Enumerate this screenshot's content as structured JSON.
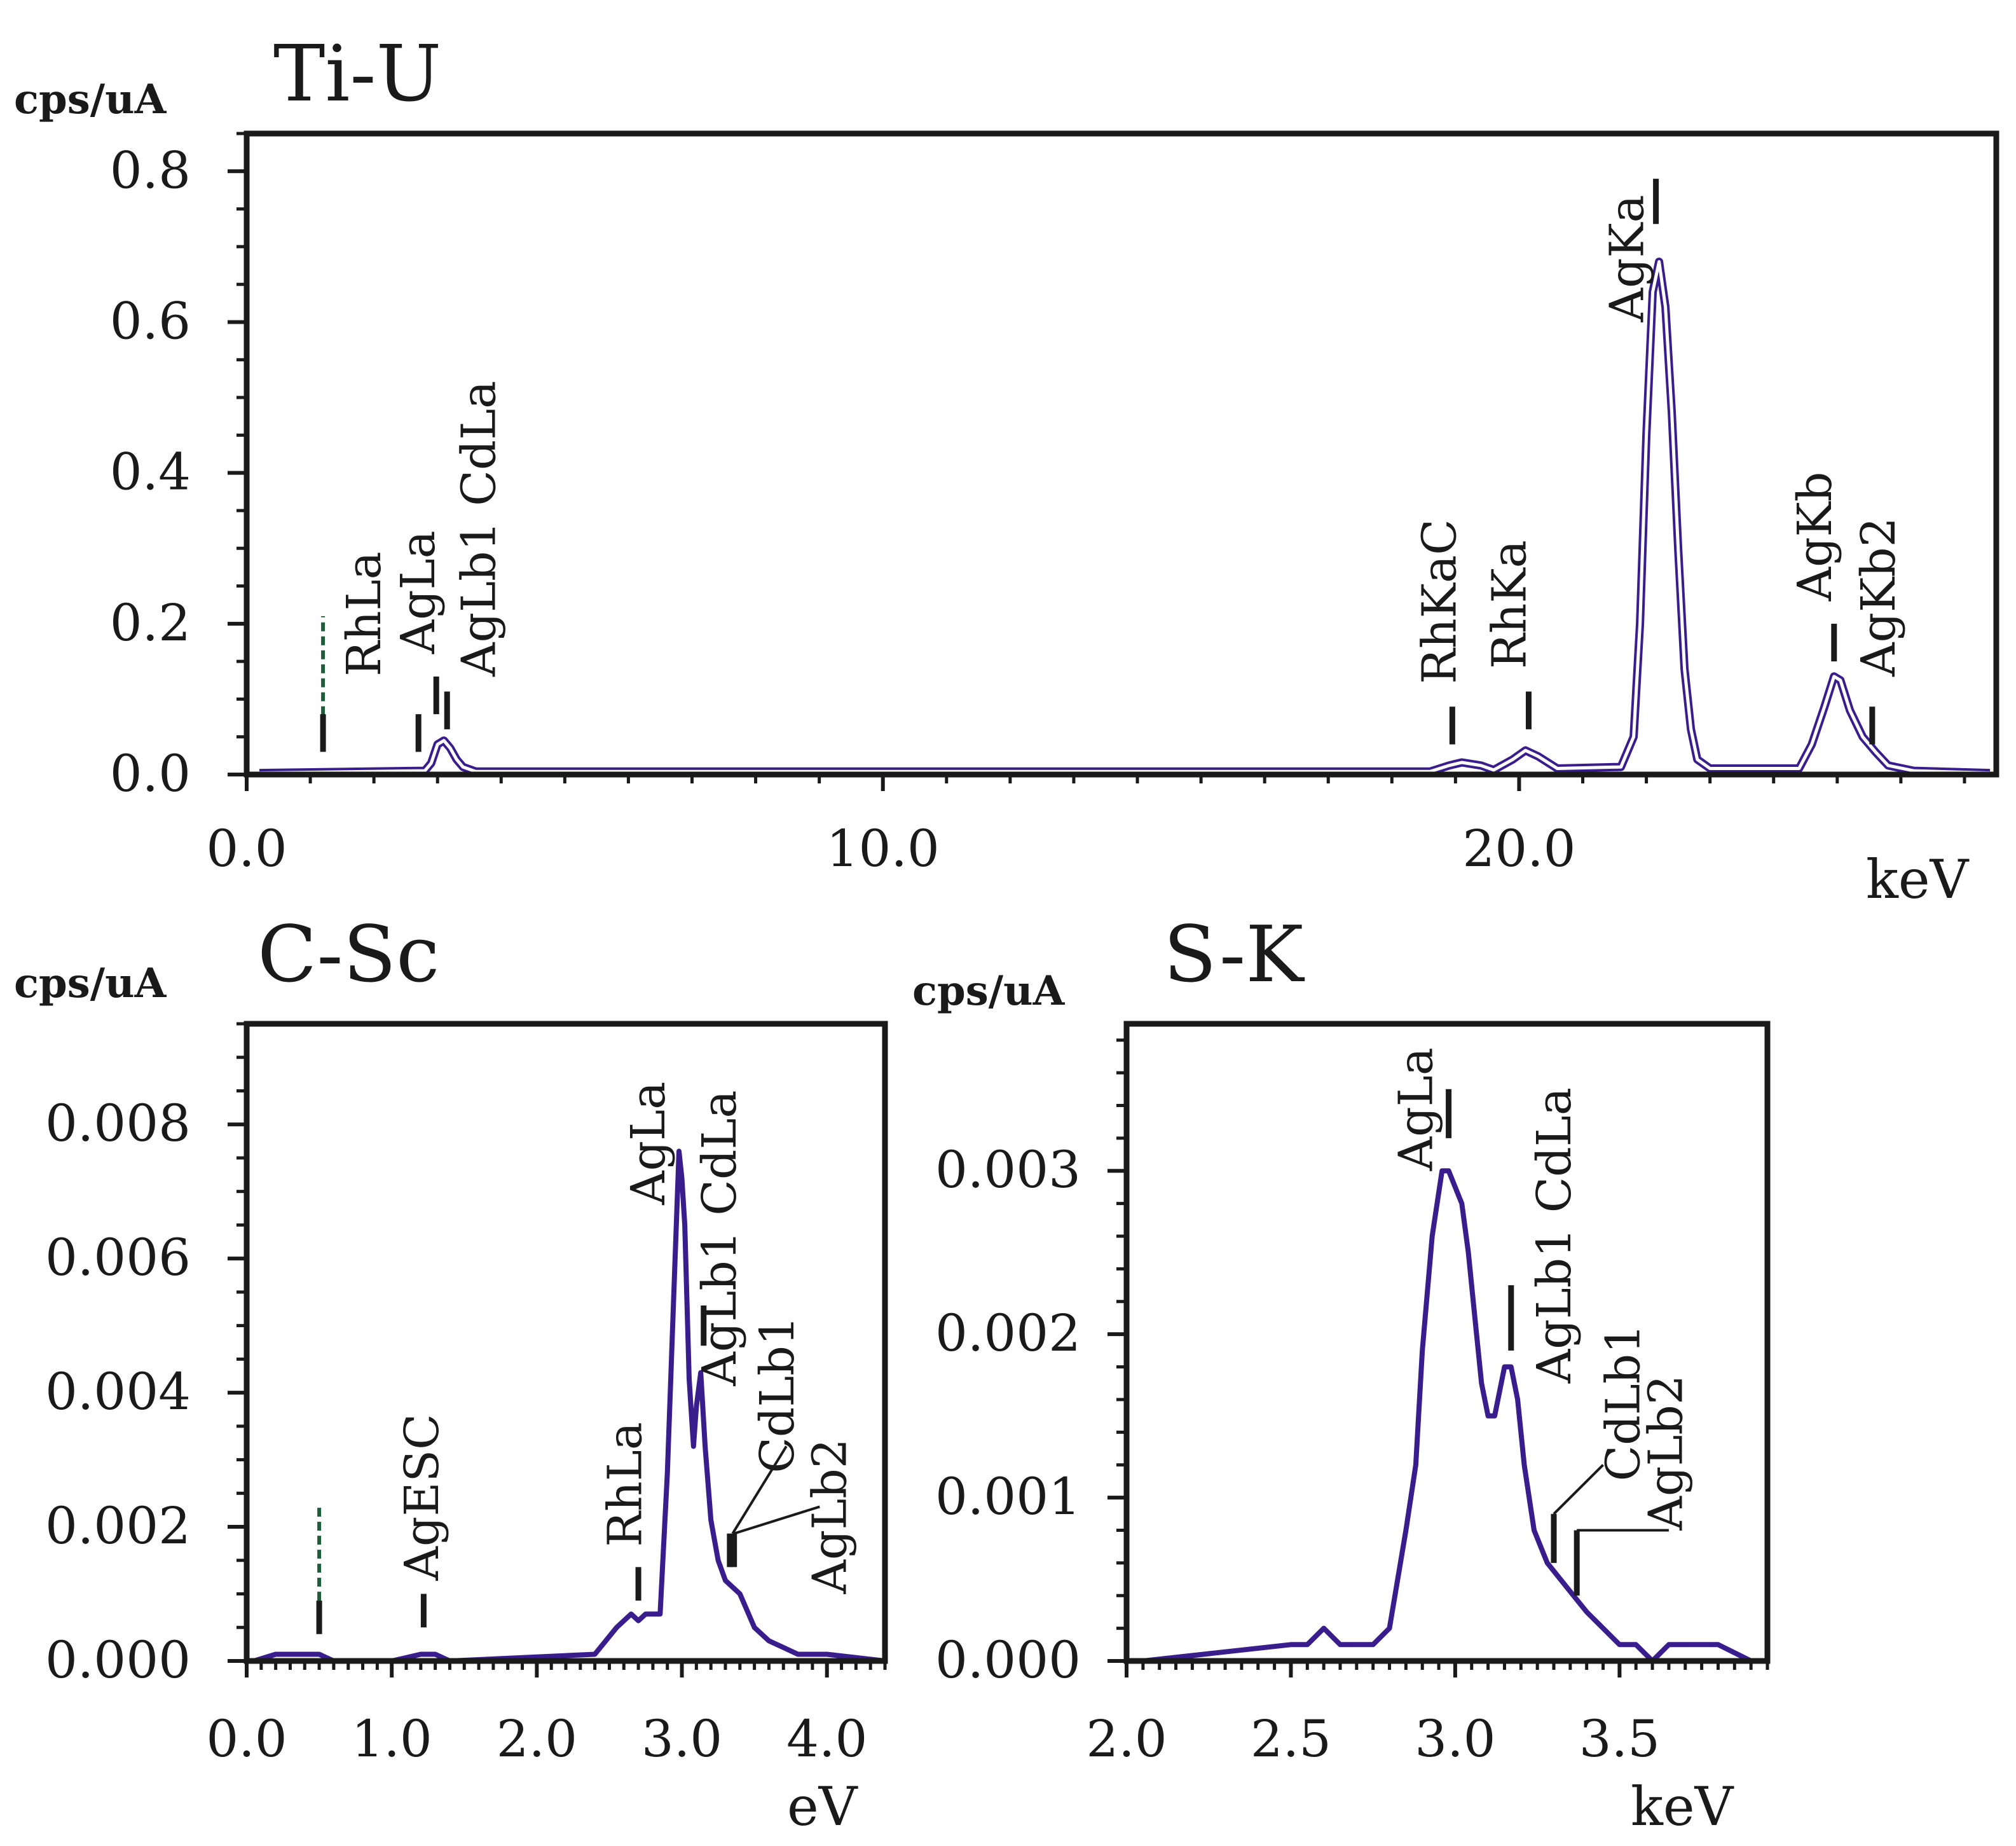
{
  "chart_data": [
    {
      "id": "ti-u",
      "type": "line",
      "title": "Ti-U",
      "ylabel": "cps/uA",
      "xlabel": "keV",
      "xlim": [
        0,
        27.5
      ],
      "ylim": [
        0,
        0.85
      ],
      "xticks": [
        0,
        10,
        20
      ],
      "xtick_labels": [
        "0.0",
        "10.0",
        "20.0"
      ],
      "xminor_step": 1,
      "yticks": [
        0,
        0.2,
        0.4,
        0.6,
        0.8
      ],
      "ytick_labels": [
        "0.0",
        "0.2",
        "0.4",
        "0.6",
        "0.8"
      ],
      "yminor_step": 0.05,
      "series": [
        {
          "name": "spectrum",
          "color": "#3a1d8c",
          "double": true,
          "x": [
            0.2,
            2.8,
            2.9,
            3.0,
            3.1,
            3.2,
            3.3,
            3.4,
            3.6,
            18.6,
            18.9,
            19.1,
            19.4,
            19.6,
            19.9,
            20.1,
            20.3,
            20.6,
            21.6,
            21.8,
            21.9,
            22.0,
            22.1,
            22.2,
            22.3,
            22.4,
            22.5,
            22.6,
            22.7,
            22.8,
            23.0,
            24.4,
            24.6,
            24.8,
            24.95,
            25.05,
            25.2,
            25.4,
            25.6,
            25.8,
            26.2,
            27.4
          ],
          "y": [
            0.002,
            0.005,
            0.015,
            0.04,
            0.045,
            0.035,
            0.02,
            0.01,
            0.004,
            0.004,
            0.012,
            0.016,
            0.012,
            0.006,
            0.02,
            0.032,
            0.024,
            0.008,
            0.01,
            0.05,
            0.2,
            0.45,
            0.64,
            0.68,
            0.62,
            0.48,
            0.3,
            0.14,
            0.06,
            0.02,
            0.008,
            0.008,
            0.04,
            0.09,
            0.13,
            0.125,
            0.085,
            0.05,
            0.03,
            0.012,
            0.005,
            0.002
          ]
        },
        {
          "name": "reference",
          "color": "#1f5c3a",
          "dashed": true,
          "x": [
            1.2,
            1.2
          ],
          "y": [
            0.06,
            0.21
          ]
        }
      ],
      "markers": [
        {
          "x": 1.2,
          "y0": 0.03,
          "y1": 0.08
        },
        {
          "x": 2.7,
          "y0": 0.03,
          "y1": 0.08
        },
        {
          "x": 2.98,
          "y0": 0.08,
          "y1": 0.13
        },
        {
          "x": 3.15,
          "y0": 0.06,
          "y1": 0.11
        },
        {
          "x": 18.95,
          "y0": 0.04,
          "y1": 0.09
        },
        {
          "x": 20.15,
          "y0": 0.06,
          "y1": 0.11
        },
        {
          "x": 22.15,
          "y0": 0.73,
          "y1": 0.79
        },
        {
          "x": 24.95,
          "y0": 0.15,
          "y1": 0.2
        },
        {
          "x": 25.55,
          "y0": 0.04,
          "y1": 0.09
        }
      ],
      "annotations": [
        {
          "text": "RhLa",
          "x": 2.1,
          "y": 0.13
        },
        {
          "text": "AgLa",
          "x": 2.95,
          "y": 0.16
        },
        {
          "text": "AgLb1 CdLa",
          "x": 3.9,
          "y": 0.13
        },
        {
          "text": "RhKaC",
          "x": 19.0,
          "y": 0.12
        },
        {
          "text": "RhKa",
          "x": 20.1,
          "y": 0.14
        },
        {
          "text": "AgKa",
          "x": 21.95,
          "y": 0.6
        },
        {
          "text": "AgKb",
          "x": 24.9,
          "y": 0.23
        },
        {
          "text": "AgKb2",
          "x": 25.9,
          "y": 0.13
        }
      ]
    },
    {
      "id": "c-sc",
      "type": "line",
      "title": "C-Sc",
      "ylabel": "cps/uA",
      "xlabel": "eV",
      "xlim": [
        0,
        4.4
      ],
      "ylim": [
        0,
        0.0095
      ],
      "xticks": [
        0,
        1,
        2,
        3,
        4
      ],
      "xtick_labels": [
        "0.0",
        "1.0",
        "2.0",
        "3.0",
        "4.0"
      ],
      "xminor_step": 0.1,
      "yticks": [
        0,
        0.002,
        0.004,
        0.006,
        0.008
      ],
      "ytick_labels": [
        "0.000",
        "0.002",
        "0.004",
        "0.006",
        "0.008"
      ],
      "yminor_step": 0.0005,
      "series": [
        {
          "name": "spectrum",
          "color": "#3a1d8c",
          "double": false,
          "x": [
            0.05,
            0.2,
            0.4,
            0.5,
            0.6,
            0.8,
            1.0,
            1.2,
            1.3,
            1.4,
            2.4,
            2.55,
            2.65,
            2.7,
            2.75,
            2.85,
            2.9,
            2.95,
            2.98,
            3.0,
            3.02,
            3.05,
            3.08,
            3.1,
            3.13,
            3.16,
            3.2,
            3.25,
            3.3,
            3.4,
            3.5,
            3.6,
            3.7,
            3.8,
            4.0,
            4.4
          ],
          "y": [
            0.0,
            0.0001,
            0.0001,
            0.0001,
            0.0,
            0.0,
            0.0,
            0.0001,
            0.0001,
            0.0,
            0.0001,
            0.0005,
            0.0007,
            0.0006,
            0.0007,
            0.0007,
            0.0028,
            0.0058,
            0.0076,
            0.0072,
            0.0065,
            0.0042,
            0.0032,
            0.0038,
            0.0043,
            0.0032,
            0.0021,
            0.0015,
            0.0012,
            0.001,
            0.0005,
            0.0003,
            0.0002,
            0.0001,
            0.0001,
            0.0
          ]
        },
        {
          "name": "reference",
          "color": "#1f5c3a",
          "dashed": true,
          "x": [
            0.5,
            0.5
          ],
          "y": [
            0.0009,
            0.0023
          ]
        }
      ],
      "markers": [
        {
          "x": 0.5,
          "y0": 0.0004,
          "y1": 0.0009
        },
        {
          "x": 1.22,
          "y0": 0.0005,
          "y1": 0.001
        },
        {
          "x": 2.7,
          "y0": 0.0009,
          "y1": 0.0014
        },
        {
          "x": 3.15,
          "y0": 0.0047,
          "y1": 0.0053
        },
        {
          "x": 3.33,
          "y0": 0.0014,
          "y1": 0.0019
        },
        {
          "x": 3.36,
          "y0": 0.0014,
          "y1": 0.0019
        }
      ],
      "leaders": [
        {
          "x0": 3.35,
          "y0": 0.0019,
          "x1": 3.72,
          "y1": 0.0032
        },
        {
          "x0": 3.36,
          "y0": 0.0019,
          "x1": 3.95,
          "y1": 0.0023
        }
      ],
      "annotations": [
        {
          "text": "AgESC",
          "x": 1.32,
          "y": 0.0012
        },
        {
          "text": "RhLa",
          "x": 2.72,
          "y": 0.0017
        },
        {
          "text": "AgLa",
          "x": 2.88,
          "y": 0.0068
        },
        {
          "text": "AgLb1 CdLa",
          "x": 3.37,
          "y": 0.0041
        },
        {
          "text": "CdLb1",
          "x": 3.77,
          "y": 0.0028
        },
        {
          "text": "AgLb2",
          "x": 4.13,
          "y": 0.001
        }
      ]
    },
    {
      "id": "s-k",
      "type": "line",
      "title": "S-K",
      "ylabel": "cps/uA",
      "xlabel": "keV",
      "xlim": [
        2.0,
        3.95
      ],
      "ylim": [
        0,
        0.0039
      ],
      "xticks": [
        2.0,
        2.5,
        3.0,
        3.5
      ],
      "xtick_labels": [
        "2.0",
        "2.5",
        "3.0",
        "3.5"
      ],
      "xminor_step": 0.05,
      "yticks": [
        0,
        0.001,
        0.002,
        0.003
      ],
      "ytick_labels": [
        "0.000",
        "0.001",
        "0.002",
        "0.003"
      ],
      "yminor_step": 0.0002,
      "series": [
        {
          "name": "spectrum",
          "color": "#3a1d8c",
          "double": false,
          "x": [
            2.05,
            2.5,
            2.55,
            2.6,
            2.65,
            2.7,
            2.75,
            2.8,
            2.85,
            2.88,
            2.9,
            2.93,
            2.96,
            2.98,
            3.0,
            3.02,
            3.04,
            3.06,
            3.08,
            3.1,
            3.12,
            3.15,
            3.17,
            3.19,
            3.21,
            3.24,
            3.28,
            3.32,
            3.36,
            3.4,
            3.45,
            3.5,
            3.55,
            3.6,
            3.65,
            3.7,
            3.75,
            3.8,
            3.9
          ],
          "y": [
            0.0,
            0.0001,
            0.0001,
            0.0002,
            0.0001,
            0.0001,
            0.0001,
            0.0002,
            0.0008,
            0.0012,
            0.0019,
            0.0026,
            0.003,
            0.003,
            0.0029,
            0.0028,
            0.0025,
            0.0021,
            0.0017,
            0.0015,
            0.0015,
            0.0018,
            0.0018,
            0.0016,
            0.0012,
            0.0008,
            0.0006,
            0.0005,
            0.0004,
            0.0003,
            0.0002,
            0.0001,
            0.0001,
            0.0,
            0.0001,
            0.0001,
            0.0001,
            0.0001,
            0.0
          ]
        }
      ],
      "markers": [
        {
          "x": 2.98,
          "y0": 0.0032,
          "y1": 0.0035
        },
        {
          "x": 3.17,
          "y0": 0.0019,
          "y1": 0.0023
        },
        {
          "x": 3.3,
          "y0": 0.0006,
          "y1": 0.0009
        },
        {
          "x": 3.37,
          "y0": 0.0004,
          "y1": 0.0008
        }
      ],
      "leaders": [
        {
          "x0": 3.3,
          "y0": 0.0009,
          "x1": 3.45,
          "y1": 0.0012
        },
        {
          "x0": 3.37,
          "y0": 0.0008,
          "x1": 3.65,
          "y1": 0.0008
        }
      ],
      "annotations": [
        {
          "text": "AgLa",
          "x": 2.93,
          "y": 0.003
        },
        {
          "text": "AgLb1 CdLa",
          "x": 3.35,
          "y": 0.0017
        },
        {
          "text": "CdLb1",
          "x": 3.56,
          "y": 0.0011
        },
        {
          "text": "AgLb2",
          "x": 3.69,
          "y": 0.0008
        }
      ]
    }
  ]
}
